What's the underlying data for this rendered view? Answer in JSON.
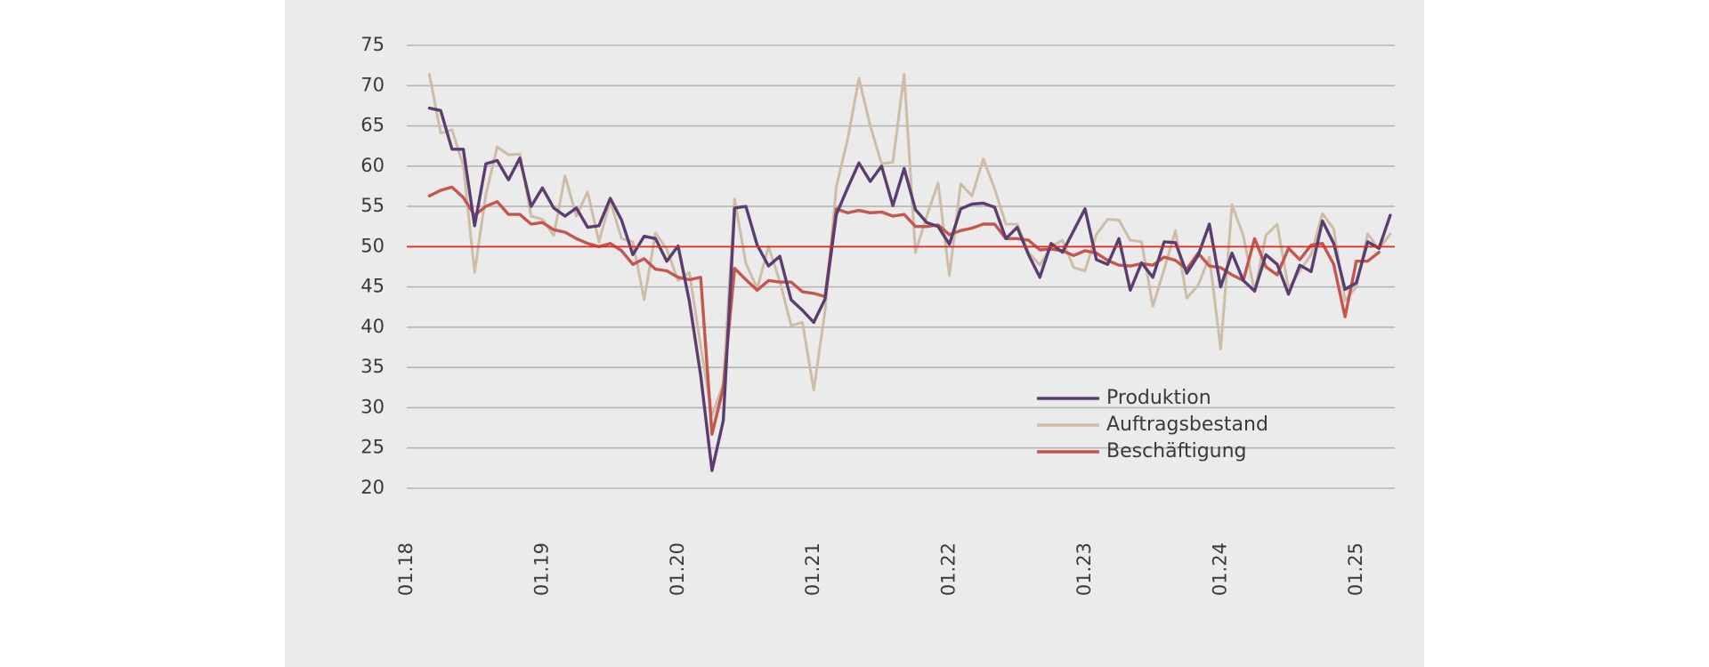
{
  "chart_data": {
    "type": "line",
    "title": "",
    "xlabel": "",
    "ylabel": "",
    "ylim": [
      20,
      75
    ],
    "yticks": [
      "75",
      "70",
      "65",
      "60",
      "55",
      "50",
      "45",
      "40",
      "35",
      "30",
      "25",
      "20"
    ],
    "xticks": [
      "01.18",
      "01.19",
      "01.20",
      "01.21",
      "01.22",
      "01.23",
      "01.24",
      "01.25"
    ],
    "x_start": "01.18",
    "x_interval": "month",
    "reference_line": {
      "value": 50,
      "color": "#d62a2a"
    },
    "grid": "horizontal",
    "legend_position": "bottom-right",
    "colors": {
      "Produktion": "#5a3e6e",
      "Auftragsbestand": "#cdbda8",
      "Beschäftigung": "#c4554f"
    },
    "series": [
      {
        "name": "Produktion",
        "x_first": "03.18",
        "values": [
          67.2,
          66.9,
          62.1,
          62.1,
          52.6,
          60.3,
          60.7,
          58.3,
          61.0,
          55.0,
          57.3,
          54.8,
          53.8,
          54.8,
          52.4,
          52.6,
          56.0,
          53.3,
          49.0,
          51.3,
          51.0,
          48.2,
          50.1,
          43.2,
          34.0,
          22.2,
          28.4,
          54.8,
          55.0,
          50.2,
          47.6,
          48.8,
          43.4,
          42.1,
          40.6,
          43.5,
          54.0,
          57.3,
          60.4,
          58.1,
          60.0,
          55.1,
          59.7,
          54.6,
          53.0,
          52.5,
          50.3,
          54.7,
          55.3,
          55.4,
          54.9,
          51.0,
          52.4,
          49.0,
          46.2,
          50.4,
          49.3,
          52.0,
          54.7,
          48.4,
          47.8,
          51.0,
          44.6,
          48.0,
          46.2,
          50.6,
          50.5,
          46.7,
          48.9,
          52.8,
          45.0,
          49.2,
          45.8,
          44.5,
          49.0,
          47.8,
          44.1,
          47.7,
          46.9,
          53.2,
          50.4,
          44.7,
          45.5,
          50.6,
          49.8,
          53.9
        ]
      },
      {
        "name": "Auftragsbestand",
        "x_first": "03.18",
        "values": [
          71.4,
          64.1,
          64.5,
          60.1,
          46.8,
          56.5,
          62.4,
          61.4,
          61.5,
          53.8,
          53.4,
          51.4,
          58.8,
          53.8,
          56.8,
          50.6,
          55.7,
          51.0,
          50.6,
          43.4,
          51.7,
          49.7,
          45.8,
          46.8,
          37.6,
          29.0,
          33.0,
          55.9,
          47.9,
          44.8,
          50.0,
          45.7,
          40.2,
          40.6,
          32.2,
          42.0,
          57.5,
          63.3,
          70.9,
          65.0,
          60.3,
          60.5,
          71.4,
          49.3,
          53.8,
          57.9,
          46.4,
          57.8,
          56.3,
          60.9,
          57.2,
          52.8,
          52.8,
          49.3,
          47.7,
          50.0,
          50.8,
          47.4,
          47.0,
          51.5,
          53.4,
          53.3,
          50.8,
          50.6,
          42.6,
          47.2,
          52.0,
          43.6,
          45.2,
          48.7,
          37.3,
          55.2,
          51.4,
          44.4,
          51.4,
          52.8,
          44.8,
          47.0,
          49.0,
          54.1,
          52.2,
          43.3,
          45.0,
          51.6,
          49.7,
          51.6
        ]
      },
      {
        "name": "Beschäftigung",
        "x_first": "03.18",
        "values": [
          56.3,
          57.0,
          57.4,
          56.1,
          53.9,
          55.0,
          55.6,
          54.0,
          54.0,
          52.8,
          53.0,
          52.1,
          51.8,
          51.0,
          50.4,
          50.0,
          50.4,
          49.5,
          47.8,
          48.5,
          47.2,
          47.0,
          46.2,
          45.9,
          46.2,
          26.7,
          32.5,
          47.3,
          45.9,
          44.6,
          45.8,
          45.6,
          45.6,
          44.4,
          44.2,
          43.8,
          54.7,
          54.2,
          54.5,
          54.2,
          54.3,
          53.8,
          54.0,
          52.5,
          52.5,
          52.7,
          51.5,
          52.0,
          52.3,
          52.8,
          52.8,
          51.0,
          51.0,
          50.8,
          49.6,
          49.7,
          49.5,
          48.9,
          49.5,
          49.2,
          48.3,
          47.7,
          47.6,
          47.9,
          47.7,
          48.7,
          48.3,
          47.2,
          49.2,
          47.6,
          47.4,
          46.5,
          45.8,
          51.0,
          47.5,
          46.5,
          49.8,
          48.4,
          50.2,
          50.4,
          47.8,
          41.3,
          48.2,
          48.2,
          49.3
        ]
      }
    ]
  }
}
